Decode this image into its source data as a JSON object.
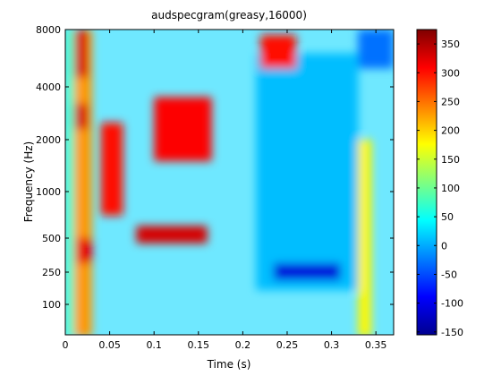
{
  "chart_data": {
    "type": "heatmap",
    "title": "audspecgram(greasy,16000)",
    "xlabel": "Time (s)",
    "ylabel": "Frequency (Hz)",
    "xlim": [
      0,
      0.37
    ],
    "x_ticks": [
      0,
      0.05,
      0.1,
      0.15,
      0.2,
      0.25,
      0.3,
      0.35
    ],
    "x_tick_labels": [
      "0",
      "0.05",
      "0.1",
      "0.15",
      "0.2",
      "0.25",
      "0.3",
      "0.35"
    ],
    "y_ticks": [
      100,
      250,
      500,
      1000,
      2000,
      4000,
      8000
    ],
    "y_tick_labels": [
      "100",
      "250",
      "500",
      "1000",
      "2000",
      "4000",
      "8000"
    ],
    "y_scale": "auditory (approximately log)",
    "colormap": "jet",
    "color_range": [
      -155,
      375
    ],
    "colorbar_ticks": [
      -150,
      -100,
      -50,
      0,
      50,
      100,
      150,
      200,
      250,
      300,
      350
    ],
    "colorbar_tick_labels": [
      "-150",
      "-100",
      "-50",
      "0",
      "50",
      "100",
      "150",
      "200",
      "250",
      "300",
      "350"
    ],
    "regions": [
      {
        "t": [
          0.0,
          0.01
        ],
        "f": [
          60,
          8000
        ],
        "level": 70
      },
      {
        "t": [
          0.01,
          0.03
        ],
        "f": [
          60,
          8000
        ],
        "level": 230
      },
      {
        "t": [
          0.01,
          0.025
        ],
        "f": [
          4500,
          8000
        ],
        "level": 330
      },
      {
        "t": [
          0.01,
          0.025
        ],
        "f": [
          2300,
          3200
        ],
        "level": 330
      },
      {
        "t": [
          0.012,
          0.03
        ],
        "f": [
          300,
          500
        ],
        "level": 320
      },
      {
        "t": [
          0.04,
          0.065
        ],
        "f": [
          700,
          2500
        ],
        "level": 300
      },
      {
        "t": [
          0.1,
          0.165
        ],
        "f": [
          1500,
          3500
        ],
        "level": 310
      },
      {
        "t": [
          0.08,
          0.16
        ],
        "f": [
          450,
          600
        ],
        "level": 330
      },
      {
        "t": [
          0.215,
          0.33
        ],
        "f": [
          150,
          6000
        ],
        "level": 10
      },
      {
        "t": [
          0.235,
          0.31
        ],
        "f": [
          200,
          300
        ],
        "level": -110
      },
      {
        "t": [
          0.22,
          0.26
        ],
        "f": [
          5000,
          7500
        ],
        "level": 300
      },
      {
        "t": [
          0.33,
          0.37
        ],
        "f": [
          5000,
          8000
        ],
        "level": -30
      },
      {
        "t": [
          0.33,
          0.345
        ],
        "f": [
          60,
          2000
        ],
        "level": 180
      }
    ]
  }
}
